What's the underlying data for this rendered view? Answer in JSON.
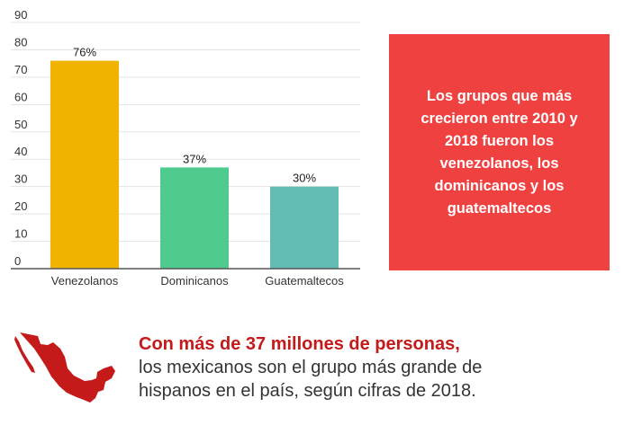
{
  "chart_data": {
    "type": "bar",
    "categories": [
      "Venezolanos",
      "Dominicanos",
      "Guatemaltecos"
    ],
    "values": [
      76,
      37,
      30
    ],
    "data_labels": [
      "76%",
      "37%",
      "30%"
    ],
    "colors": [
      "#f0b400",
      "#4ecb8d",
      "#63bcb3"
    ],
    "ylim": [
      0,
      90
    ],
    "yticks": [
      0,
      10,
      20,
      30,
      40,
      50,
      60,
      70,
      80,
      90
    ],
    "grid": true,
    "title": "",
    "xlabel": "",
    "ylabel": ""
  },
  "callout": {
    "text": "Los grupos que más crecieron entre 2010 y 2018 fueron los venezolanos, los dominicanos y los guatemaltecos",
    "color": "#f04141"
  },
  "footer": {
    "headline": "Con más de 37 millones de personas,",
    "line1": "los mexicanos son el grupo más grande de",
    "line2": "hispanos en el país, según cifras de 2018.",
    "headline_color": "#c41a1a",
    "icon": "mexico-map-icon"
  }
}
